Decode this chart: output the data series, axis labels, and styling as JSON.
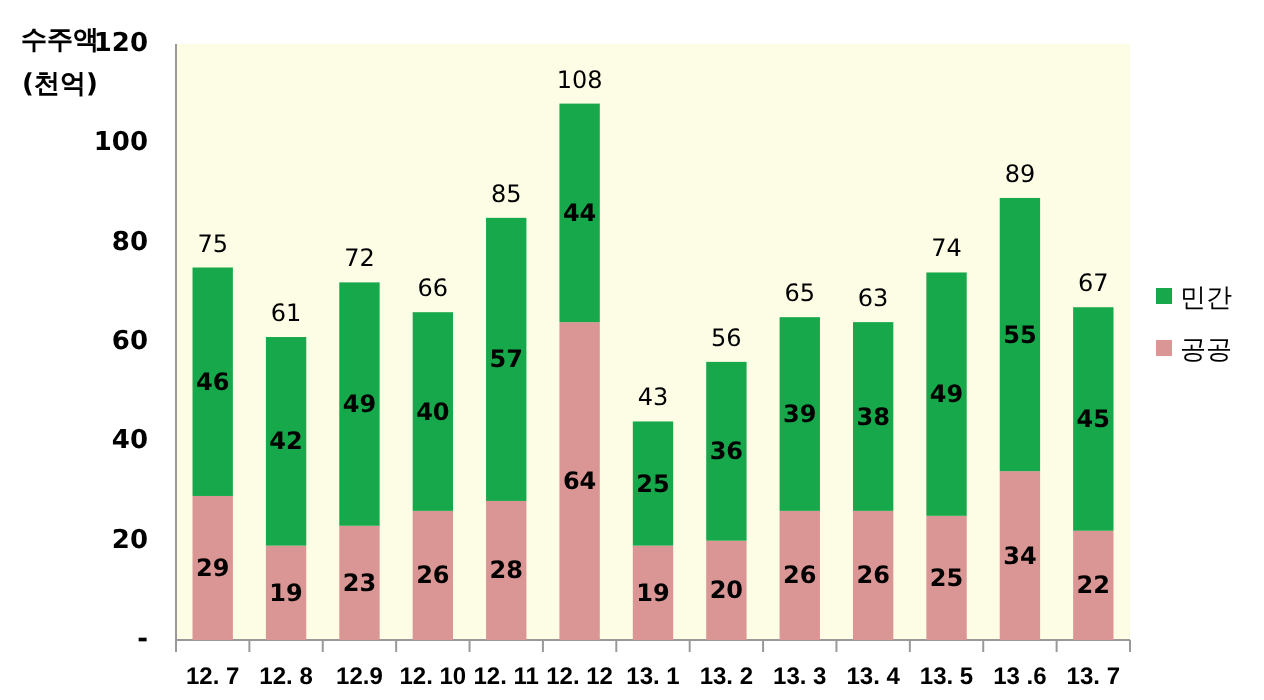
{
  "chart_data": {
    "type": "bar",
    "stacked": true,
    "ylabel": "수주액 (천억)",
    "categories": [
      "12. 7",
      "12. 8",
      "12.9",
      "12. 10",
      "12. 11",
      "12. 12",
      "13. 1",
      "13. 2",
      "13. 3",
      "13. 4",
      "13. 5",
      "13 .6",
      "13. 7"
    ],
    "series": [
      {
        "name": "공공",
        "color": "#d99694",
        "values": [
          29,
          19,
          23,
          26,
          28,
          64,
          19,
          20,
          26,
          26,
          25,
          34,
          22
        ]
      },
      {
        "name": "민간",
        "color": "#16a84a",
        "values": [
          46,
          42,
          49,
          40,
          57,
          44,
          25,
          36,
          39,
          38,
          49,
          55,
          45
        ]
      }
    ],
    "totals": [
      "75",
      "61",
      "72",
      "66",
      "85",
      "108",
      "43",
      "56",
      "65",
      "63",
      "74",
      "89",
      "67"
    ],
    "data_labels": true,
    "ylim": [
      0,
      120
    ],
    "yticks": [
      {
        "value": 0,
        "label": "-"
      },
      20,
      40,
      60,
      80,
      100,
      120
    ],
    "grid": false,
    "legend": "right"
  }
}
